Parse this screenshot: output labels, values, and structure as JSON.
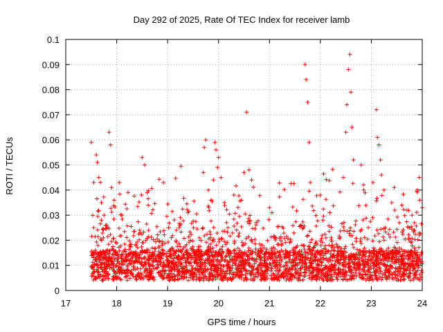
{
  "chart_data": {
    "type": "scatter",
    "title": "Day 292 of 2025, Rate Of TEC Index for receiver lamb",
    "xlabel": "GPS time / hours",
    "ylabel": "ROTI / TECUs",
    "xlim": [
      17,
      24
    ],
    "ylim": [
      0,
      0.1
    ],
    "x_ticks": [
      "17",
      "18",
      "19",
      "20",
      "21",
      "22",
      "23",
      "24"
    ],
    "y_ticks": [
      "0",
      "0.01",
      "0.02",
      "0.03",
      "0.04",
      "0.05",
      "0.06",
      "0.07",
      "0.08",
      "0.09",
      "0.1"
    ],
    "grid": true,
    "marker": "plus",
    "series": [
      {
        "name": "ROTI",
        "color": "#ff0000",
        "x": [
          17.5,
          17.55,
          17.6,
          17.62,
          17.65,
          17.7,
          17.75,
          17.85,
          17.88,
          17.9,
          17.95,
          18.05,
          18.1,
          18.5,
          18.55,
          18.6,
          18.62,
          19.02,
          19.25,
          19.4,
          19.7,
          19.72,
          19.75,
          19.8,
          19.85,
          19.9,
          19.93,
          19.95,
          19.98,
          20.0,
          20.05,
          20.3,
          20.45,
          20.5,
          20.55,
          20.6,
          20.65,
          21.0,
          21.05,
          21.7,
          21.72,
          21.75,
          21.78,
          21.8,
          22.0,
          22.05,
          22.45,
          22.5,
          22.52,
          22.55,
          22.58,
          22.6,
          22.62,
          22.65,
          22.8,
          22.85,
          23.1,
          23.12,
          23.15,
          23.18,
          23.2,
          23.25,
          23.4,
          23.45,
          23.6,
          23.7,
          23.8,
          23.9,
          23.95,
          24.0
        ],
        "values": [
          0.059,
          0.043,
          0.054,
          0.051,
          0.045,
          0.035,
          0.03,
          0.063,
          0.058,
          0.041,
          0.036,
          0.043,
          0.03,
          0.053,
          0.05,
          0.039,
          0.034,
          0.025,
          0.029,
          0.031,
          0.047,
          0.057,
          0.06,
          0.04,
          0.036,
          0.044,
          0.059,
          0.056,
          0.049,
          0.053,
          0.045,
          0.038,
          0.036,
          0.047,
          0.071,
          0.048,
          0.044,
          0.033,
          0.031,
          0.09,
          0.084,
          0.075,
          0.059,
          0.043,
          0.038,
          0.028,
          0.045,
          0.063,
          0.074,
          0.088,
          0.094,
          0.079,
          0.065,
          0.052,
          0.05,
          0.04,
          0.072,
          0.061,
          0.058,
          0.052,
          0.046,
          0.04,
          0.035,
          0.041,
          0.034,
          0.032,
          0.03,
          0.04,
          0.036,
          0.033
        ]
      }
    ],
    "cloud": {
      "x_start": 17.5,
      "x_end": 24.0,
      "count": 2800,
      "baseline": [
        0.004,
        0.016
      ],
      "max_extra": 0.025
    }
  }
}
